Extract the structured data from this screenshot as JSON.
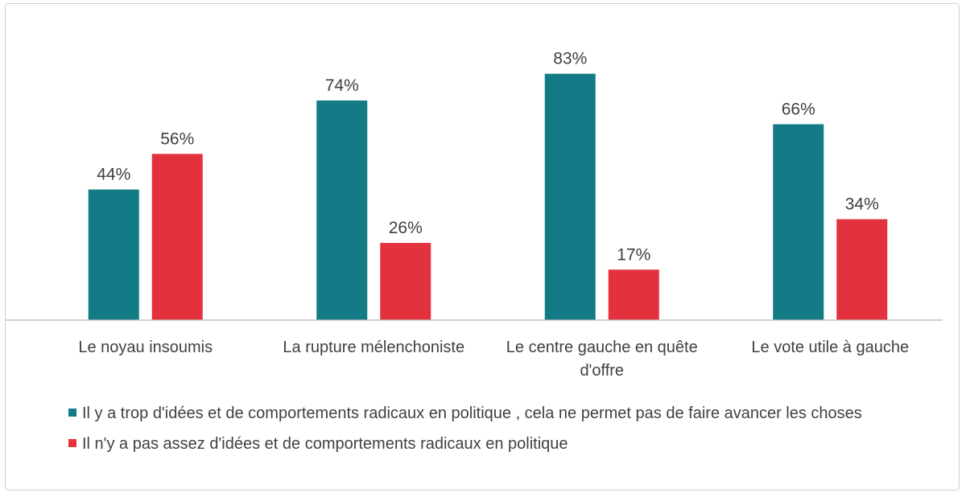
{
  "colors": {
    "series1": "#137b86",
    "series2": "#e3323e",
    "axis": "#b8b8b8",
    "text": "#404040"
  },
  "chart_data": {
    "type": "bar",
    "categories": [
      "Le noyau insoumis",
      "La rupture mélenchoniste",
      "Le centre gauche en quête d'offre",
      "Le vote utile à gauche"
    ],
    "series": [
      {
        "name": "Il y a trop d'idées et de comportements radicaux en politique , cela ne permet pas de faire avancer les choses",
        "values": [
          44,
          74,
          83,
          66
        ],
        "labels": [
          "44%",
          "74%",
          "83%",
          "66%"
        ]
      },
      {
        "name": "Il n'y a pas assez d'idées et de comportements radicaux en politique",
        "values": [
          56,
          26,
          17,
          34
        ],
        "labels": [
          "56%",
          "26%",
          "17%",
          "34%"
        ]
      }
    ],
    "unit": "%",
    "ylim": [
      0,
      100
    ],
    "grid": false,
    "legend": "bottom"
  }
}
